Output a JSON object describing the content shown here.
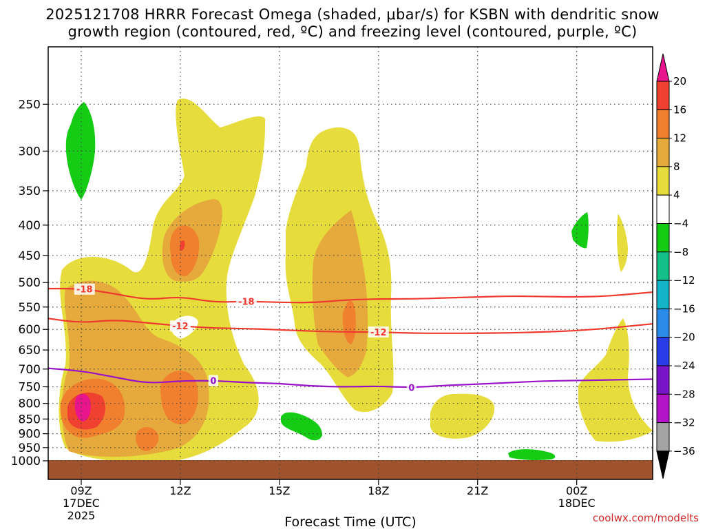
{
  "title_line1": "2025121708 HRRR Forecast Omega (shaded, μbar/s) for KSBN with dendritic snow",
  "title_line2": "growth region (contoured, red, ºC) and freezing level (contoured, purple, ºC)",
  "chart_data": {
    "type": "time-height cross-section (filled contour)",
    "x_label": "Forecast Time (UTC)",
    "x_range_hours": [
      8,
      26.3
    ],
    "x_ticks": [
      {
        "hour": 9,
        "label": "09Z",
        "sub1": "17DEC",
        "sub2": "2025"
      },
      {
        "hour": 12,
        "label": "12Z",
        "sub1": "",
        "sub2": ""
      },
      {
        "hour": 15,
        "label": "15Z",
        "sub1": "",
        "sub2": ""
      },
      {
        "hour": 18,
        "label": "18Z",
        "sub1": "",
        "sub2": ""
      },
      {
        "hour": 21,
        "label": "21Z",
        "sub1": "",
        "sub2": ""
      },
      {
        "hour": 24,
        "label": "00Z",
        "sub1": "18DEC",
        "sub2": ""
      }
    ],
    "y_axis": "pressure (hPa), log scale",
    "y_range_hpa": [
      200,
      1075
    ],
    "y_ticks": [
      250,
      300,
      350,
      400,
      450,
      500,
      550,
      600,
      650,
      700,
      750,
      800,
      850,
      900,
      950,
      1000
    ],
    "contours": [
      {
        "name": "-18C isotherm",
        "label": "-18",
        "color": "#ee3a2e",
        "points": [
          [
            8,
            512
          ],
          [
            9,
            512
          ],
          [
            10,
            522
          ],
          [
            11,
            535
          ],
          [
            12,
            528
          ],
          [
            13,
            540
          ],
          [
            14,
            538
          ],
          [
            15,
            540
          ],
          [
            16,
            541
          ],
          [
            17,
            535
          ],
          [
            18,
            533
          ],
          [
            19,
            533
          ],
          [
            20,
            531
          ],
          [
            21,
            529
          ],
          [
            22,
            527
          ],
          [
            23,
            528
          ],
          [
            24,
            529
          ],
          [
            25,
            527
          ],
          [
            26.3,
            519
          ]
        ]
      },
      {
        "name": "-12C isotherm",
        "label": "-12",
        "color": "#ee3a2e",
        "points": [
          [
            8,
            575
          ],
          [
            9,
            585
          ],
          [
            10,
            578
          ],
          [
            11,
            585
          ],
          [
            12,
            592
          ],
          [
            13,
            597
          ],
          [
            14,
            598
          ],
          [
            15,
            601
          ],
          [
            16,
            604
          ],
          [
            17,
            606
          ],
          [
            18,
            606
          ],
          [
            19,
            609
          ],
          [
            20,
            609
          ],
          [
            21,
            609
          ],
          [
            22,
            608
          ],
          [
            23,
            606
          ],
          [
            24,
            603
          ],
          [
            25,
            597
          ],
          [
            26.3,
            587
          ]
        ]
      },
      {
        "name": "0C freezing level",
        "label": "0",
        "color": "#9a12c8",
        "points": [
          [
            8,
            698
          ],
          [
            9,
            705
          ],
          [
            10,
            722
          ],
          [
            11,
            740
          ],
          [
            12,
            733
          ],
          [
            13,
            732
          ],
          [
            14,
            738
          ],
          [
            15,
            740
          ],
          [
            16,
            748
          ],
          [
            17,
            750
          ],
          [
            18,
            748
          ],
          [
            19,
            752
          ],
          [
            20,
            746
          ],
          [
            21,
            742
          ],
          [
            22,
            738
          ],
          [
            23,
            733
          ],
          [
            24,
            732
          ],
          [
            25,
            730
          ],
          [
            26.3,
            728
          ]
        ]
      }
    ],
    "colorbar": {
      "units": "μbar/s",
      "labels": [
        "20",
        "16",
        "12",
        "8",
        "4",
        "−4",
        "−8",
        "−12",
        "−16",
        "−20",
        "−24",
        "−28",
        "−32",
        "−36"
      ],
      "bins": [
        {
          "range": "> 20",
          "color": "#e8158c"
        },
        {
          "range": "16 to 20",
          "color": "#f04030"
        },
        {
          "range": "12 to 16",
          "color": "#f07f2e"
        },
        {
          "range": "8 to 12",
          "color": "#e6aa3c"
        },
        {
          "range": "4 to 8",
          "color": "#e6dc3c"
        },
        {
          "range": "-4 to 4",
          "color": "#ffffff"
        },
        {
          "range": "-8 to -4",
          "color": "#14cc14"
        },
        {
          "range": "-12 to -8",
          "color": "#14c088"
        },
        {
          "range": "-16 to -12",
          "color": "#14b4c8"
        },
        {
          "range": "-20 to -16",
          "color": "#2a8ce8"
        },
        {
          "range": "-24 to -20",
          "color": "#2a3ce8"
        },
        {
          "range": "-28 to -24",
          "color": "#7a14c8"
        },
        {
          "range": "-32 to -28",
          "color": "#b414c8"
        },
        {
          "range": "-36 to -32",
          "color": "#a4a4a4"
        },
        {
          "range": "< -36",
          "color": "#000000"
        }
      ]
    }
  },
  "credit": "coolwx.com/modelts",
  "colors": {
    "ground": "#a0522d",
    "grid": "#444444"
  }
}
